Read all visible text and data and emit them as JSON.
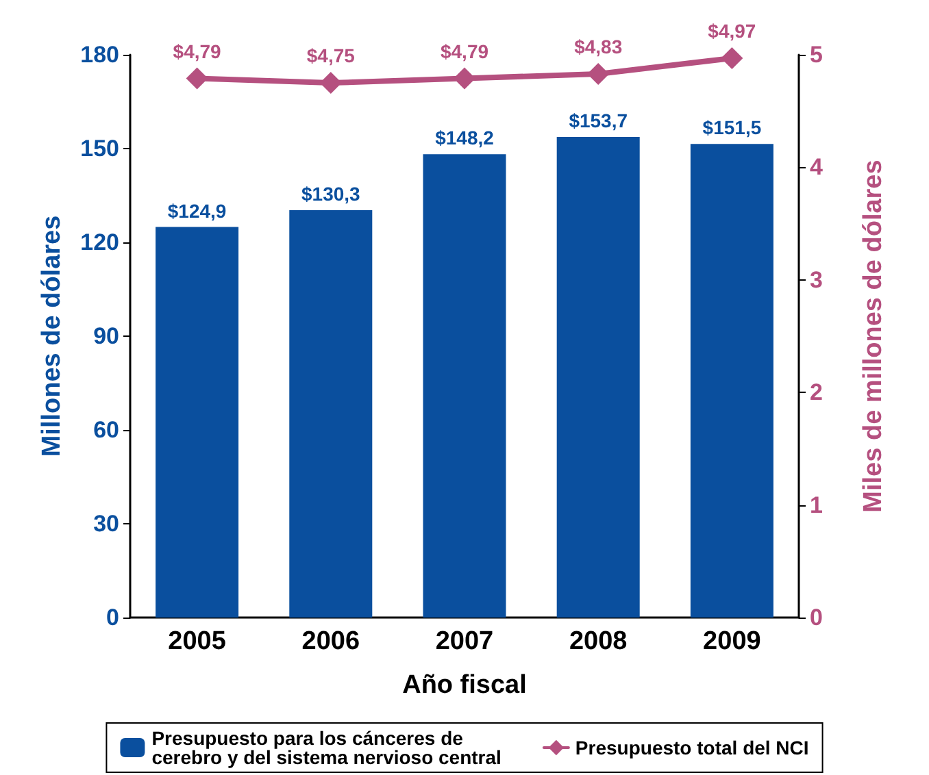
{
  "chart_data": {
    "type": "bar",
    "xlabel": "Año fiscal",
    "ylabel": "Millones de dólares",
    "y2label": "Miles de millones de dólares",
    "categories": [
      "2005",
      "2006",
      "2007",
      "2008",
      "2009"
    ],
    "series": [
      {
        "name": "Presupuesto para los cánceres de cerebro y del sistema nervioso central",
        "color": "#0a4f9e",
        "values": [
          124.9,
          130.3,
          148.2,
          153.7,
          151.5
        ],
        "value_labels": [
          "$124,9",
          "$130,3",
          "$148,2",
          "$153,7",
          "$151,5"
        ]
      },
      {
        "name": "Presupuesto total del NCI",
        "type": "line",
        "axis": "y2",
        "color": "#b5507f",
        "values": [
          4.79,
          4.75,
          4.79,
          4.83,
          4.97
        ],
        "value_labels": [
          "$4,79",
          "$4,75",
          "$4,79",
          "$4,83",
          "$4,97"
        ],
        "marker": "diamond",
        "line_style": "solid"
      }
    ],
    "ylim": [
      0,
      180
    ],
    "yticks": [
      0,
      30,
      60,
      90,
      120,
      150,
      180
    ],
    "y2lim": [
      0,
      5
    ],
    "y2ticks": [
      0,
      1,
      2,
      3,
      4,
      5
    ],
    "grid": false,
    "legend": "bottom"
  }
}
